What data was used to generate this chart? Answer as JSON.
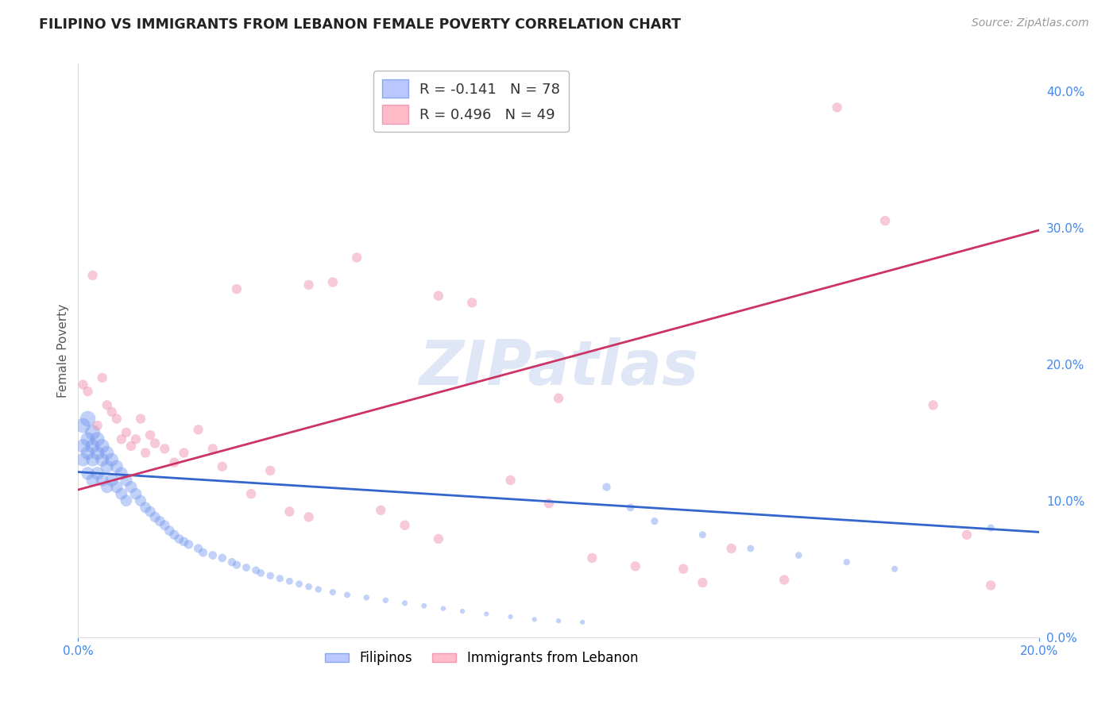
{
  "title": "FILIPINO VS IMMIGRANTS FROM LEBANON FEMALE POVERTY CORRELATION CHART",
  "source": "Source: ZipAtlas.com",
  "ylabel": "Female Poverty",
  "xlim": [
    0.0,
    0.2
  ],
  "ylim": [
    0.0,
    0.42
  ],
  "yticks": [
    0.0,
    0.1,
    0.2,
    0.3,
    0.4
  ],
  "xticks": [
    0.0,
    0.2
  ],
  "background_color": "#ffffff",
  "grid_color": "#cccccc",
  "watermark": "ZIPatlas",
  "filipino_color": "#7799ee",
  "lebanon_color": "#ee88aa",
  "R_filipino": -0.141,
  "N_filipino": 78,
  "R_lebanon": 0.496,
  "N_lebanon": 49,
  "filipino_trend_x": [
    0.0,
    0.2
  ],
  "filipino_trend_y": [
    0.121,
    0.077
  ],
  "lebanon_trend_x": [
    0.0,
    0.2
  ],
  "lebanon_trend_y": [
    0.108,
    0.298
  ],
  "filipino_x": [
    0.001,
    0.001,
    0.001,
    0.002,
    0.002,
    0.002,
    0.002,
    0.003,
    0.003,
    0.003,
    0.003,
    0.004,
    0.004,
    0.004,
    0.005,
    0.005,
    0.005,
    0.006,
    0.006,
    0.006,
    0.007,
    0.007,
    0.008,
    0.008,
    0.009,
    0.009,
    0.01,
    0.01,
    0.011,
    0.012,
    0.013,
    0.014,
    0.015,
    0.016,
    0.017,
    0.018,
    0.019,
    0.02,
    0.021,
    0.022,
    0.023,
    0.025,
    0.026,
    0.028,
    0.03,
    0.032,
    0.033,
    0.035,
    0.037,
    0.038,
    0.04,
    0.042,
    0.044,
    0.046,
    0.048,
    0.05,
    0.053,
    0.056,
    0.06,
    0.064,
    0.068,
    0.072,
    0.076,
    0.08,
    0.085,
    0.09,
    0.095,
    0.1,
    0.105,
    0.11,
    0.115,
    0.12,
    0.13,
    0.14,
    0.15,
    0.16,
    0.17,
    0.19
  ],
  "filipino_y": [
    0.155,
    0.14,
    0.13,
    0.16,
    0.145,
    0.135,
    0.12,
    0.15,
    0.14,
    0.13,
    0.115,
    0.145,
    0.135,
    0.12,
    0.14,
    0.13,
    0.115,
    0.135,
    0.125,
    0.11,
    0.13,
    0.115,
    0.125,
    0.11,
    0.12,
    0.105,
    0.115,
    0.1,
    0.11,
    0.105,
    0.1,
    0.095,
    0.092,
    0.088,
    0.085,
    0.082,
    0.078,
    0.075,
    0.072,
    0.07,
    0.068,
    0.065,
    0.062,
    0.06,
    0.058,
    0.055,
    0.053,
    0.051,
    0.049,
    0.047,
    0.045,
    0.043,
    0.041,
    0.039,
    0.037,
    0.035,
    0.033,
    0.031,
    0.029,
    0.027,
    0.025,
    0.023,
    0.021,
    0.019,
    0.017,
    0.015,
    0.013,
    0.012,
    0.011,
    0.11,
    0.095,
    0.085,
    0.075,
    0.065,
    0.06,
    0.055,
    0.05,
    0.08
  ],
  "filipino_sizes": [
    180,
    160,
    150,
    200,
    170,
    155,
    140,
    190,
    165,
    150,
    135,
    175,
    160,
    140,
    165,
    150,
    130,
    155,
    140,
    125,
    145,
    130,
    138,
    122,
    132,
    118,
    125,
    112,
    118,
    112,
    106,
    100,
    96,
    92,
    88,
    85,
    82,
    78,
    75,
    72,
    70,
    66,
    63,
    60,
    58,
    56,
    54,
    52,
    50,
    48,
    46,
    44,
    42,
    40,
    38,
    36,
    34,
    32,
    30,
    28,
    26,
    24,
    22,
    20,
    20,
    20,
    20,
    20,
    20,
    55,
    50,
    45,
    42,
    40,
    38,
    36,
    34,
    45
  ],
  "lebanon_x": [
    0.001,
    0.002,
    0.003,
    0.004,
    0.005,
    0.006,
    0.007,
    0.008,
    0.009,
    0.01,
    0.011,
    0.012,
    0.013,
    0.014,
    0.015,
    0.016,
    0.018,
    0.02,
    0.022,
    0.025,
    0.028,
    0.03,
    0.033,
    0.036,
    0.04,
    0.044,
    0.048,
    0.053,
    0.058,
    0.063,
    0.068,
    0.075,
    0.082,
    0.09,
    0.098,
    0.107,
    0.116,
    0.126,
    0.136,
    0.147,
    0.158,
    0.168,
    0.178,
    0.185,
    0.19,
    0.048,
    0.075,
    0.1,
    0.13
  ],
  "lebanon_y": [
    0.185,
    0.18,
    0.265,
    0.155,
    0.19,
    0.17,
    0.165,
    0.16,
    0.145,
    0.15,
    0.14,
    0.145,
    0.16,
    0.135,
    0.148,
    0.142,
    0.138,
    0.128,
    0.135,
    0.152,
    0.138,
    0.125,
    0.255,
    0.105,
    0.122,
    0.092,
    0.088,
    0.26,
    0.278,
    0.093,
    0.082,
    0.072,
    0.245,
    0.115,
    0.098,
    0.058,
    0.052,
    0.05,
    0.065,
    0.042,
    0.388,
    0.305,
    0.17,
    0.075,
    0.038,
    0.258,
    0.25,
    0.175,
    0.04
  ],
  "lebanon_sizes": [
    80,
    80,
    80,
    80,
    80,
    80,
    80,
    80,
    80,
    80,
    80,
    80,
    80,
    80,
    80,
    80,
    80,
    80,
    80,
    80,
    80,
    80,
    80,
    80,
    80,
    80,
    80,
    80,
    80,
    80,
    80,
    80,
    80,
    80,
    80,
    80,
    80,
    80,
    80,
    80,
    80,
    80,
    80,
    80,
    80,
    80,
    80,
    80,
    80
  ]
}
